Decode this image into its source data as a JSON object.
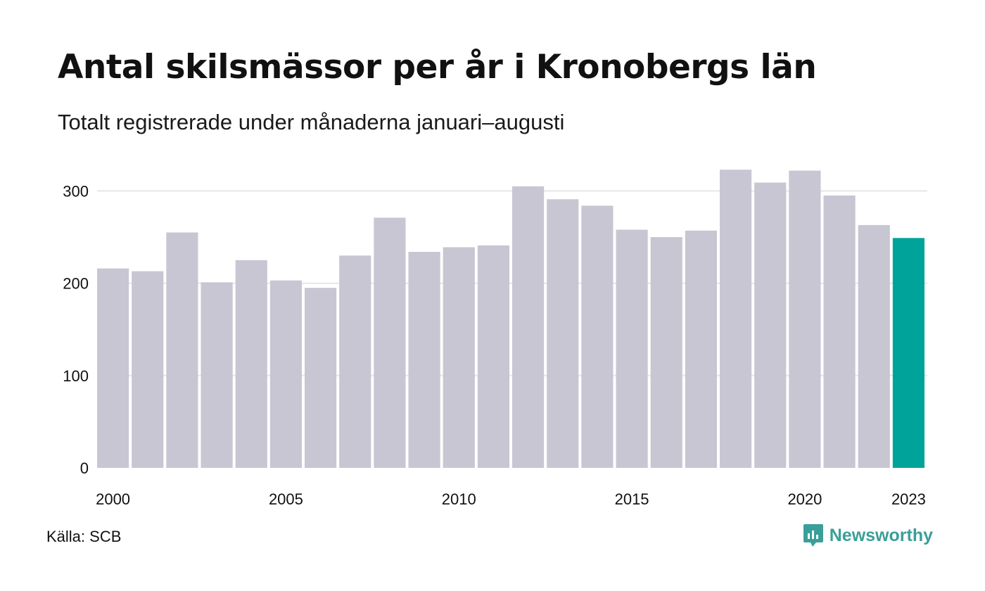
{
  "title": "Antal skilsmässor per år i Kronobergs län",
  "subtitle": "Totalt registrerade under månaderna januari–augusti",
  "source": "Källa: SCB",
  "brand": "Newsworthy",
  "colors": {
    "bar": "#c8c6d2",
    "highlight": "#00a39a",
    "grid": "#e6e6e6",
    "logo": "#3a9f99"
  },
  "chart_data": {
    "type": "bar",
    "title": "Antal skilsmässor per år i Kronobergs län",
    "subtitle": "Totalt registrerade under månaderna januari–augusti",
    "xlabel": "",
    "ylabel": "",
    "ylim": [
      0,
      330
    ],
    "yticks": [
      0,
      100,
      200,
      300
    ],
    "xtick_labels": [
      "2000",
      "2005",
      "2010",
      "2015",
      "2020",
      "2023"
    ],
    "grid": true,
    "highlight_category": "2023",
    "categories": [
      "2000",
      "2001",
      "2002",
      "2003",
      "2004",
      "2005",
      "2006",
      "2007",
      "2008",
      "2009",
      "2010",
      "2011",
      "2012",
      "2013",
      "2014",
      "2015",
      "2016",
      "2017",
      "2018",
      "2019",
      "2020",
      "2021",
      "2022",
      "2023"
    ],
    "values": [
      216,
      213,
      255,
      201,
      225,
      203,
      195,
      230,
      271,
      234,
      239,
      241,
      305,
      291,
      284,
      258,
      250,
      257,
      323,
      309,
      322,
      295,
      263,
      249
    ]
  }
}
